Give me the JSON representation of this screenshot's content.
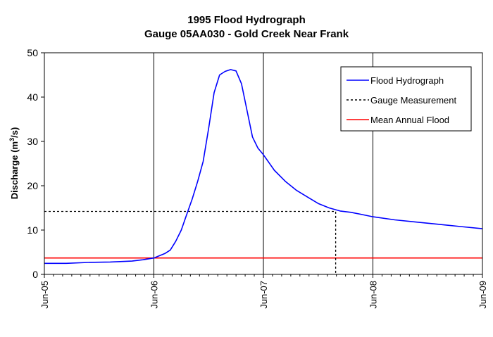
{
  "chart_data": {
    "type": "line",
    "title": "1995 Flood Hydrograph",
    "subtitle": "Gauge 05AA030 - Gold Creek Near Frank",
    "ylabel_main": "Discharge (m",
    "ylabel_sup": "3",
    "ylabel_tail": "/s)",
    "xlabel": "",
    "ylim": [
      0,
      50
    ],
    "yticks": [
      0,
      10,
      20,
      30,
      40,
      50
    ],
    "xlim": [
      5,
      9
    ],
    "xticks": [
      {
        "value": 5,
        "label": "Jun-05"
      },
      {
        "value": 6,
        "label": "Jun-06"
      },
      {
        "value": 7,
        "label": "Jun-07"
      },
      {
        "value": 8,
        "label": "Jun-08"
      },
      {
        "value": 9,
        "label": "Jun-09"
      }
    ],
    "grid": "vertical",
    "legend_position": "top-right",
    "series": [
      {
        "name": "Flood Hydrograph",
        "color": "#0000ff",
        "style": "solid",
        "x": [
          5.0,
          5.2,
          5.4,
          5.6,
          5.8,
          5.9,
          6.0,
          6.05,
          6.1,
          6.15,
          6.2,
          6.25,
          6.3,
          6.35,
          6.4,
          6.45,
          6.5,
          6.55,
          6.6,
          6.65,
          6.7,
          6.75,
          6.8,
          6.85,
          6.9,
          6.95,
          7.0,
          7.1,
          7.2,
          7.3,
          7.4,
          7.5,
          7.6,
          7.7,
          7.8,
          8.0,
          8.2,
          8.4,
          8.6,
          8.8,
          9.0
        ],
        "y": [
          2.5,
          2.5,
          2.7,
          2.8,
          3.0,
          3.3,
          3.7,
          4.2,
          4.7,
          5.5,
          7.5,
          10.0,
          13.5,
          17.0,
          21.0,
          25.5,
          33.0,
          41.0,
          45.0,
          45.8,
          46.2,
          45.9,
          43.0,
          37.0,
          31.0,
          28.5,
          27.0,
          23.5,
          21.0,
          19.0,
          17.5,
          16.0,
          15.0,
          14.3,
          14.0,
          13.0,
          12.3,
          11.8,
          11.3,
          10.8,
          10.3
        ]
      },
      {
        "name": "Gauge Measurement",
        "color": "#000000",
        "style": "dotted",
        "x": [
          5.0,
          7.66,
          7.66
        ],
        "y": [
          14.2,
          14.2,
          0
        ]
      },
      {
        "name": "Mean Annual Flood",
        "color": "#ff0000",
        "style": "solid",
        "x": [
          5.0,
          9.0
        ],
        "y": [
          3.7,
          3.7
        ]
      }
    ]
  }
}
